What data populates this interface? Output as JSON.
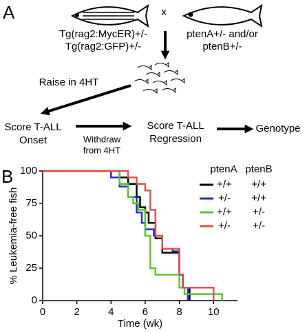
{
  "panel_a": {
    "label": "A",
    "cross": "x",
    "left_parent": [
      "Tg(rag2:MycER)+/-",
      "Tg(rag2:GFP)+/-"
    ],
    "right_parent": [
      "ptenA+/- and/or",
      "ptenB+/-"
    ],
    "raise": "Raise in 4HT",
    "onset": [
      "Score T-ALL",
      "Onset"
    ],
    "withdraw": [
      "Withdraw",
      "from 4HT"
    ],
    "regression": [
      "Score T-ALL",
      "Regression"
    ],
    "genotype": "Genotype"
  },
  "chart_data": {
    "type": "step",
    "label": "B",
    "xlabel": "Time (wk)",
    "ylabel": "% Leukemia-free fish",
    "xlim": [
      0,
      11.4
    ],
    "xticks": [
      0,
      2,
      4,
      6,
      8,
      10
    ],
    "ylim": [
      0,
      100
    ],
    "yticks": [
      0,
      25,
      50,
      75,
      100
    ],
    "legend_header": [
      "ptenA",
      "ptenB"
    ],
    "series": [
      {
        "ptenA": "+/+",
        "ptenB": "+/+",
        "color": "#000000",
        "x": [
          0,
          4.5,
          5.0,
          5.5,
          5.7,
          6.0,
          6.2,
          6.6,
          7.0,
          7.6,
          8.0,
          8.2,
          8.6
        ],
        "values": [
          100,
          95,
          90,
          80,
          72,
          68,
          60,
          48,
          37,
          37,
          20,
          10,
          0
        ]
      },
      {
        "ptenA": "+/-",
        "ptenB": "+/+",
        "color": "#1f2fcc",
        "x": [
          0,
          4.0,
          4.5,
          5.0,
          5.5,
          5.8,
          6.0,
          6.5,
          7.0,
          7.6,
          8.0,
          8.2,
          8.5
        ],
        "values": [
          100,
          95,
          88,
          80,
          68,
          60,
          55,
          50,
          40,
          38,
          20,
          10,
          0
        ]
      },
      {
        "ptenA": "+/+",
        "ptenB": "+/-",
        "color": "#5cc232",
        "x": [
          0,
          4.5,
          5.0,
          5.3,
          5.6,
          6.0,
          6.3,
          6.6,
          8.0,
          8.3,
          10.5
        ],
        "values": [
          100,
          90,
          80,
          75,
          70,
          50,
          25,
          20,
          10,
          5,
          0
        ]
      },
      {
        "ptenA": "+/-",
        "ptenB": "+/-",
        "color": "#d9534f",
        "x": [
          0,
          5.0,
          5.5,
          6.0,
          6.3,
          6.6,
          7.0,
          8.0,
          8.2,
          10.0
        ],
        "values": [
          100,
          95,
          90,
          85,
          70,
          50,
          40,
          20,
          10,
          0
        ]
      }
    ]
  }
}
